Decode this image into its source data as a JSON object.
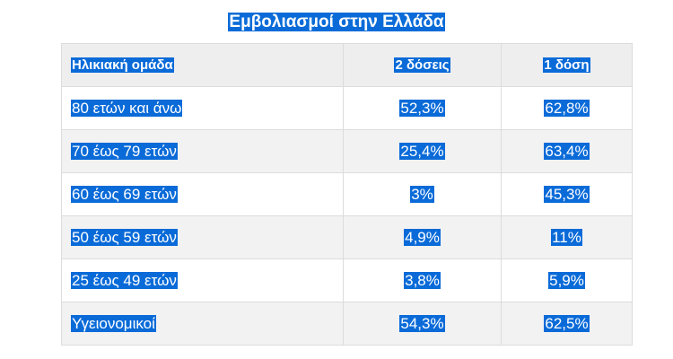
{
  "title": "Εμβολιασμοί στην Ελλάδα",
  "table": {
    "headers": [
      "Ηλικιακή ομάδα",
      "2 δόσεις",
      "1 δόση"
    ],
    "rows": [
      [
        "80 ετών και άνω",
        "52,3%",
        "62,8%"
      ],
      [
        "70 έως 79 ετών",
        "25,4%",
        "63,4%"
      ],
      [
        "60 έως 69 ετών",
        "3%",
        "45,3%"
      ],
      [
        "50 έως 59 ετών",
        "4,9%",
        "11%"
      ],
      [
        "25 έως 49 ετών",
        "3,8%",
        "5,9%"
      ],
      [
        "Υγειονομικοί",
        "54,3%",
        "62,5%"
      ]
    ]
  },
  "colors": {
    "selection_highlight": "#0a6bd8",
    "header_background": "#eeeeef",
    "stripe_background": "#f2f2f3",
    "border": "#dcdcdc"
  }
}
